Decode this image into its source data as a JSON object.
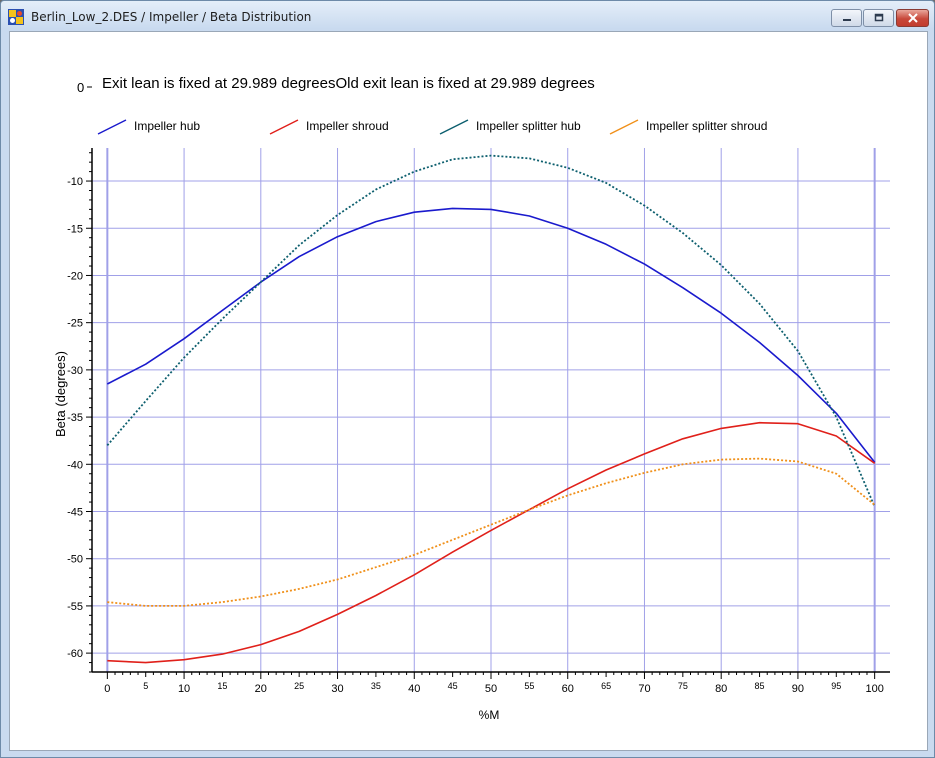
{
  "window": {
    "title": "Berlin_Low_2.DES / Impeller / Beta Distribution",
    "icon": "app-icon"
  },
  "chart_data": {
    "type": "line",
    "title_prefix": "0",
    "title": "Exit lean is fixed at 29.989 degreesOld exit lean is fixed at 29.989 degrees",
    "xlabel": "%M",
    "ylabel": "Beta (degrees)",
    "xlim": [
      -2,
      102
    ],
    "ylim": [
      -62,
      -6.5
    ],
    "x_major_ticks": [
      0,
      10,
      20,
      30,
      40,
      50,
      60,
      70,
      80,
      90,
      100
    ],
    "x_minor_ticks": [
      5,
      15,
      25,
      35,
      45,
      55,
      65,
      75,
      85,
      95
    ],
    "y_ticks": [
      -10,
      -15,
      -20,
      -25,
      -30,
      -35,
      -40,
      -45,
      -50,
      -55,
      -60
    ],
    "grid": true,
    "legend_position": "top",
    "colors": {
      "hub": "#1a1acd",
      "shroud": "#e0201a",
      "splitter_hub": "#0d5f6e",
      "splitter_shroud": "#f0901a",
      "grid": "#a0a0e8"
    },
    "series": [
      {
        "name": "Impeller hub",
        "color": "#1a1acd",
        "x": [
          0,
          5,
          10,
          15,
          20,
          25,
          30,
          35,
          40,
          45,
          50,
          55,
          60,
          65,
          70,
          75,
          80,
          85,
          90,
          95,
          100
        ],
        "y": [
          -31.5,
          -29.4,
          -26.7,
          -23.7,
          -20.7,
          -18.0,
          -15.9,
          -14.3,
          -13.3,
          -12.9,
          -13.0,
          -13.7,
          -15.0,
          -16.7,
          -18.8,
          -21.3,
          -24.0,
          -27.1,
          -30.6,
          -34.6,
          -39.8
        ]
      },
      {
        "name": "Impeller shroud",
        "color": "#e0201a",
        "x": [
          0,
          5,
          10,
          15,
          20,
          25,
          30,
          35,
          40,
          45,
          50,
          55,
          60,
          65,
          70,
          75,
          80,
          85,
          90,
          95,
          100
        ],
        "y": [
          -60.8,
          -61.0,
          -60.7,
          -60.1,
          -59.1,
          -57.7,
          -55.9,
          -53.9,
          -51.7,
          -49.3,
          -47.0,
          -44.8,
          -42.6,
          -40.6,
          -38.9,
          -37.3,
          -36.2,
          -35.6,
          -35.7,
          -37.0,
          -39.9
        ]
      },
      {
        "name": "Impeller splitter hub",
        "color": "#0d5f6e",
        "dashed": true,
        "x": [
          0,
          5,
          10,
          15,
          20,
          25,
          30,
          35,
          40,
          45,
          50,
          55,
          60,
          65,
          70,
          75,
          80,
          85,
          90,
          95,
          100
        ],
        "y": [
          -38.0,
          -33.3,
          -28.7,
          -24.6,
          -20.7,
          -16.8,
          -13.6,
          -10.9,
          -9.0,
          -7.7,
          -7.3,
          -7.6,
          -8.6,
          -10.2,
          -12.6,
          -15.5,
          -18.9,
          -23.0,
          -28.0,
          -35.0,
          -44.5
        ]
      },
      {
        "name": "Impeller splitter shroud",
        "color": "#f0901a",
        "dashed": true,
        "x": [
          0,
          5,
          10,
          15,
          20,
          25,
          30,
          35,
          40,
          45,
          50,
          55,
          60,
          65,
          70,
          75,
          80,
          85,
          90,
          95,
          100
        ],
        "y": [
          -54.6,
          -55.0,
          -55.0,
          -54.6,
          -54.0,
          -53.2,
          -52.2,
          -50.9,
          -49.6,
          -48.0,
          -46.4,
          -44.8,
          -43.3,
          -42.0,
          -40.9,
          -40.0,
          -39.5,
          -39.4,
          -39.7,
          -41.0,
          -44.3
        ]
      }
    ]
  }
}
